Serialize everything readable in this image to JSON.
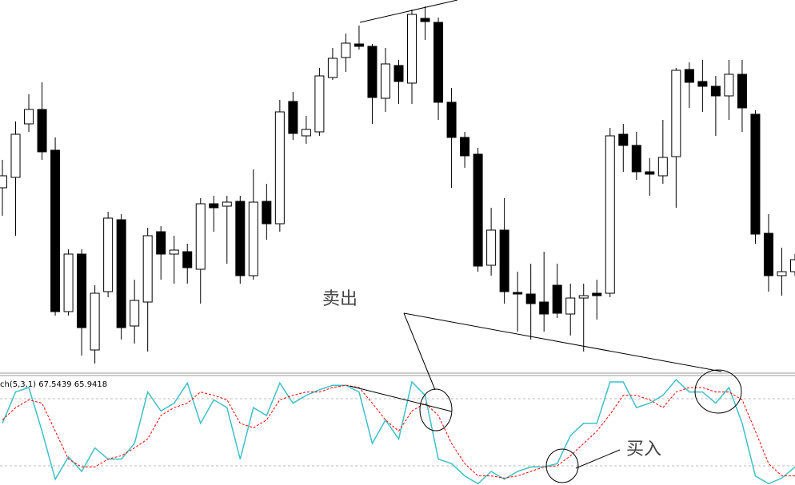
{
  "chart_data": [
    {
      "type": "candlestick",
      "open": [
        235,
        248,
        315,
        333,
        282,
        80,
        152,
        32,
        105,
        195,
        62,
        92,
        180,
        152,
        155,
        133,
        215,
        212,
        218,
        125,
        218,
        190,
        343,
        300,
        305,
        373,
        398,
        415,
        412,
        347,
        388,
        366,
        447,
        442,
        342,
        298,
        277,
        138,
        182,
        104,
        102,
        92,
        113,
        77,
        97,
        103,
        103,
        302,
        288,
        255,
        250,
        274,
        383,
        368,
        362,
        350,
        377,
        327,
        178,
        125,
        130
      ],
      "high": [
        270,
        318,
        352,
        367,
        298,
        158,
        158,
        113,
        205,
        202,
        120,
        185,
        187,
        175,
        165,
        222,
        225,
        225,
        225,
        258,
        240,
        345,
        355,
        325,
        385,
        410,
        428,
        438,
        415,
        410,
        395,
        458,
        462,
        448,
        360,
        305,
        285,
        210,
        222,
        130,
        140,
        155,
        140,
        115,
        115,
        120,
        310,
        315,
        305,
        272,
        320,
        385,
        392,
        395,
        375,
        395,
        395,
        332,
        202,
        160,
        152
      ],
      "low": [
        200,
        175,
        305,
        270,
        75,
        75,
        25,
        15,
        98,
        45,
        40,
        30,
        120,
        115,
        115,
        90,
        180,
        140,
        115,
        120,
        170,
        180,
        295,
        290,
        300,
        370,
        380,
        408,
        315,
        330,
        340,
        340,
        420,
        320,
        235,
        260,
        130,
        125,
        90,
        55,
        45,
        55,
        72,
        50,
        30,
        70,
        98,
        255,
        245,
        225,
        240,
        210,
        335,
        330,
        300,
        320,
        305,
        165,
        105,
        100,
        125
      ],
      "close": [
        250,
        302,
        333,
        280,
        80,
        152,
        60,
        103,
        197,
        60,
        94,
        175,
        152,
        157,
        135,
        215,
        210,
        217,
        125,
        217,
        190,
        330,
        303,
        308,
        375,
        397,
        416,
        412,
        348,
        390,
        368,
        452,
        443,
        342,
        298,
        275,
        137,
        182,
        105,
        102,
        90,
        77,
        78,
        97,
        100,
        100,
        300,
        288,
        255,
        252,
        273,
        382,
        367,
        362,
        350,
        377,
        335,
        177,
        125,
        130,
        145
      ],
      "ylim": [
        0,
        470
      ],
      "annotations": [
        "卖出",
        "买入"
      ]
    },
    {
      "type": "line",
      "label": "ch(5,3,1) 67.5439 65.9418",
      "ylim": [
        0,
        100
      ],
      "levels": [
        80,
        20
      ],
      "series": [
        {
          "color": "#3cc0c8",
          "style": "solid",
          "values": [
            58,
            86,
            90,
            51,
            8,
            28,
            15,
            36,
            26,
            26,
            40,
            86,
            69,
            76,
            94,
            58,
            79,
            72,
            26,
            72,
            65,
            94,
            76,
            83,
            88,
            92,
            92,
            86,
            40,
            61,
            44,
            95,
            83,
            26,
            22,
            11,
            4,
            15,
            8,
            15,
            19,
            19,
            22,
            47,
            58,
            58,
            95,
            95,
            72,
            76,
            83,
            97,
            86,
            86,
            76,
            90,
            58,
            11,
            4,
            9,
            19
          ]
        },
        {
          "color": "#ff0000",
          "style": "dashed",
          "values": [
            61,
            72,
            79,
            76,
            51,
            26,
            19,
            19,
            26,
            29,
            36,
            44,
            65,
            72,
            76,
            86,
            83,
            79,
            58,
            54,
            61,
            79,
            83,
            86,
            86,
            90,
            92,
            90,
            76,
            61,
            51,
            69,
            76,
            65,
            40,
            22,
            11,
            11,
            9,
            11,
            15,
            19,
            20,
            29,
            40,
            51,
            66,
            83,
            83,
            79,
            72,
            86,
            90,
            90,
            86,
            86,
            79,
            51,
            22,
            11,
            11
          ]
        }
      ]
    }
  ]
}
